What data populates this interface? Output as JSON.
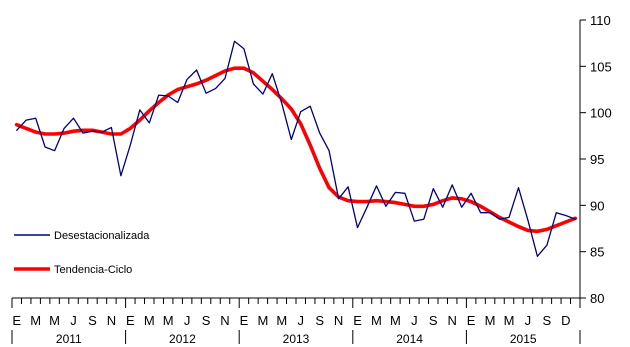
{
  "chart_data": {
    "type": "line",
    "y_axis_side": "right",
    "ylim": [
      80,
      110
    ],
    "y_ticks": [
      80,
      85,
      90,
      95,
      100,
      105,
      110
    ],
    "month_labels": [
      "E",
      "M",
      "M",
      "J",
      "S",
      "N"
    ],
    "years": [
      "2011",
      "2012",
      "2013",
      "2014",
      "2015"
    ],
    "last_year_month_labels": [
      "E",
      "M",
      "M",
      "J",
      "S",
      "D"
    ],
    "legend_position": "left-middle",
    "series": [
      {
        "name": "Desestacionalizada",
        "color": "#000080",
        "style": "thin",
        "values": [
          98.1,
          99.2,
          99.4,
          96.3,
          95.9,
          98.3,
          99.4,
          97.8,
          98.0,
          97.9,
          98.4,
          93.2,
          96.5,
          100.3,
          98.9,
          101.9,
          101.8,
          101.1,
          103.6,
          104.6,
          102.1,
          102.6,
          103.7,
          107.7,
          106.9,
          103.1,
          102.0,
          104.2,
          101.0,
          97.1,
          100.1,
          100.7,
          97.8,
          95.9,
          90.7,
          92.0,
          87.6,
          89.8,
          92.1,
          89.9,
          91.4,
          91.3,
          88.3,
          88.5,
          91.8,
          89.8,
          92.2,
          89.8,
          91.3,
          89.2,
          89.2,
          88.5,
          88.7,
          91.9,
          88.4,
          84.5,
          85.7,
          89.2,
          88.9,
          88.5
        ]
      },
      {
        "name": "Tendencia-Ciclo",
        "color": "#ff0000",
        "style": "thick",
        "values": [
          98.7,
          98.3,
          97.9,
          97.7,
          97.7,
          97.8,
          98.0,
          98.1,
          98.1,
          97.9,
          97.7,
          97.7,
          98.3,
          99.2,
          100.2,
          101.1,
          101.9,
          102.5,
          102.8,
          103.1,
          103.5,
          104.0,
          104.5,
          104.8,
          104.8,
          104.3,
          103.4,
          102.5,
          101.5,
          100.4,
          98.8,
          96.5,
          94.0,
          91.9,
          90.9,
          90.5,
          90.4,
          90.4,
          90.5,
          90.4,
          90.3,
          90.1,
          89.9,
          89.9,
          90.1,
          90.5,
          90.8,
          90.7,
          90.4,
          89.9,
          89.3,
          88.7,
          88.2,
          87.7,
          87.3,
          87.2,
          87.4,
          87.8,
          88.2,
          88.6
        ]
      }
    ]
  }
}
